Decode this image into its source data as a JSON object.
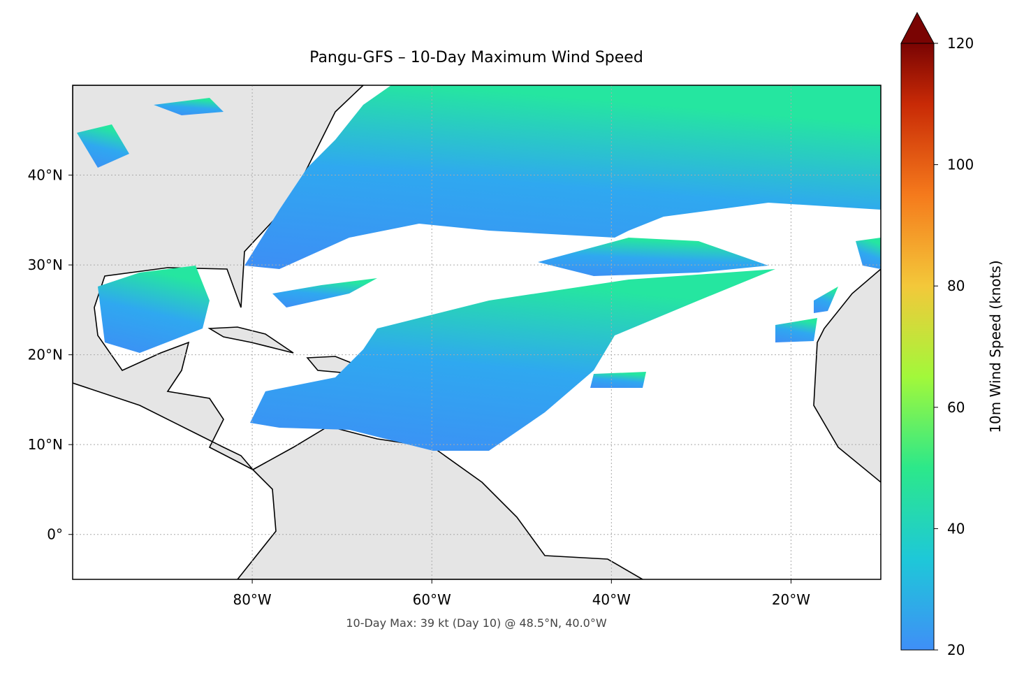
{
  "chart_data": {
    "type": "map",
    "title": "Pangu-GFS – 10-Day Maximum Wind Speed",
    "xlim": [
      -100,
      -10
    ],
    "ylim": [
      -5,
      50
    ],
    "xticks": [
      {
        "value": -80,
        "label": "80°W"
      },
      {
        "value": -60,
        "label": "60°W"
      },
      {
        "value": -40,
        "label": "40°W"
      },
      {
        "value": -20,
        "label": "20°W"
      }
    ],
    "yticks": [
      {
        "value": 0,
        "label": "0°"
      },
      {
        "value": 10,
        "label": "10°N"
      },
      {
        "value": 20,
        "label": "20°N"
      },
      {
        "value": 30,
        "label": "30°N"
      },
      {
        "value": 40,
        "label": "40°N"
      }
    ],
    "grid": true,
    "colorbar": {
      "label": "10m Wind Speed (knots)",
      "lim": [
        20,
        120
      ],
      "ticks": [
        20,
        40,
        60,
        80,
        100,
        120
      ]
    },
    "annotation": "10-Day Max: 39 kt (Day 10) @ 48.5°N, 40.0°W"
  }
}
